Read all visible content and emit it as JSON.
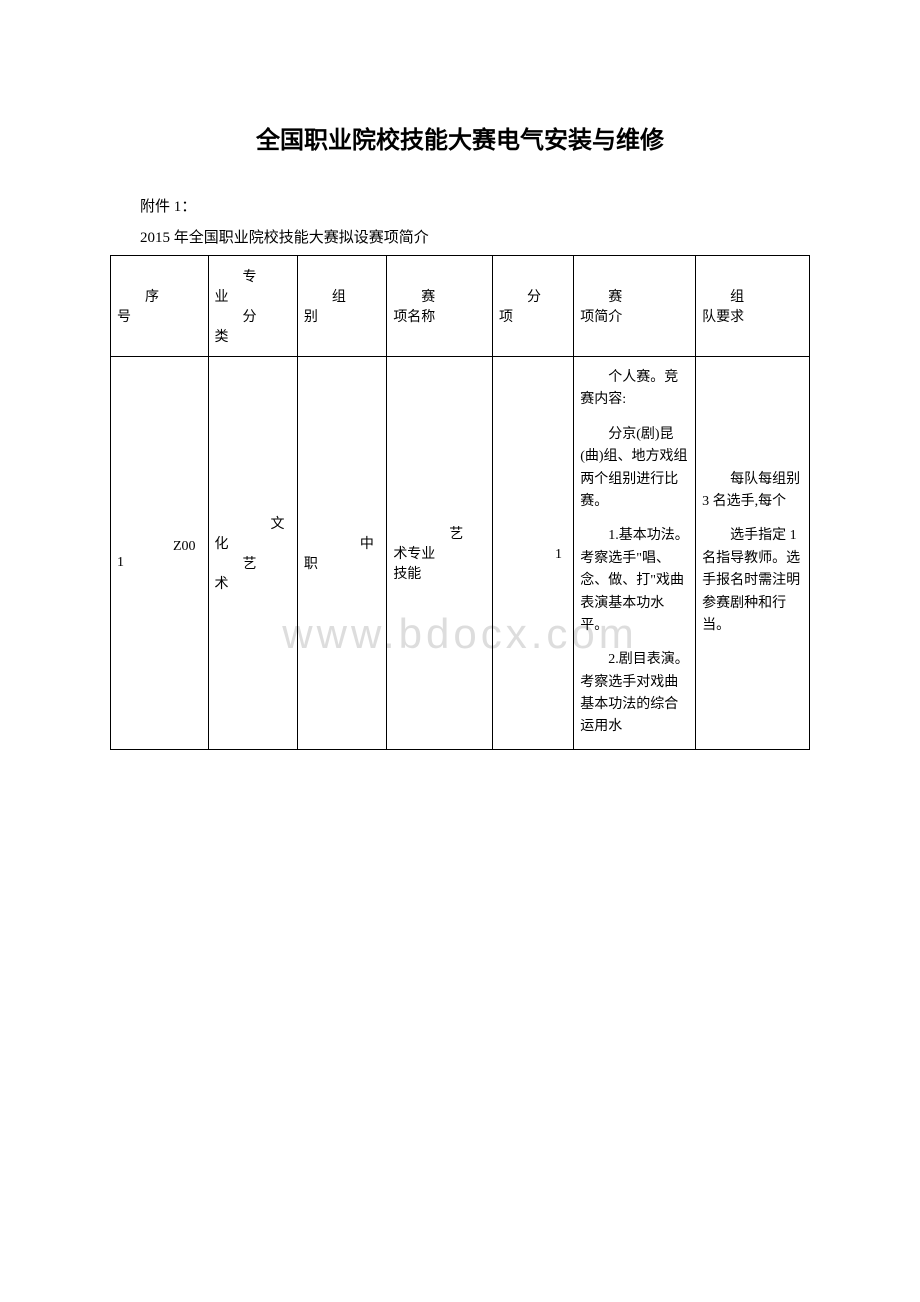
{
  "title": "全国职业院校技能大赛电气安装与维修",
  "attachment_label": "附件 1：",
  "subtitle": "2015 年全国职业院校技能大赛拟设赛项简介",
  "watermark": "www.bdocx.com",
  "table": {
    "headers": {
      "seq": "　　序\n号",
      "category": "　　专\n业\n　　分\n类",
      "group": "　　组\n别",
      "item_name": "　　赛\n项名称",
      "sub_item": "　　分\n项",
      "intro": "　　赛\n项简介",
      "team_req": "　　组\n队要求"
    },
    "rows": [
      {
        "seq": "　　Z00\n1",
        "category": "　　文\n化\n　　艺\n术",
        "group": "　　中\n职",
        "item_name": "　　艺\n术专业\n技能",
        "sub_item": "　　1",
        "intro_paragraphs": [
          "个人赛。竞赛内容:",
          "分京(剧)昆(曲)组、地方戏组两个组别进行比赛。",
          "1.基本功法。考察选手\"唱、念、做、打\"戏曲表演基本功水平。",
          "2.剧目表演。考察选手对戏曲基本功法的综合运用水"
        ],
        "req_paragraphs": [
          "每队每组别 3 名选手,每个",
          "选手指定 1 名指导教师。选手报名时需注明参赛剧种和行当。"
        ]
      }
    ]
  }
}
